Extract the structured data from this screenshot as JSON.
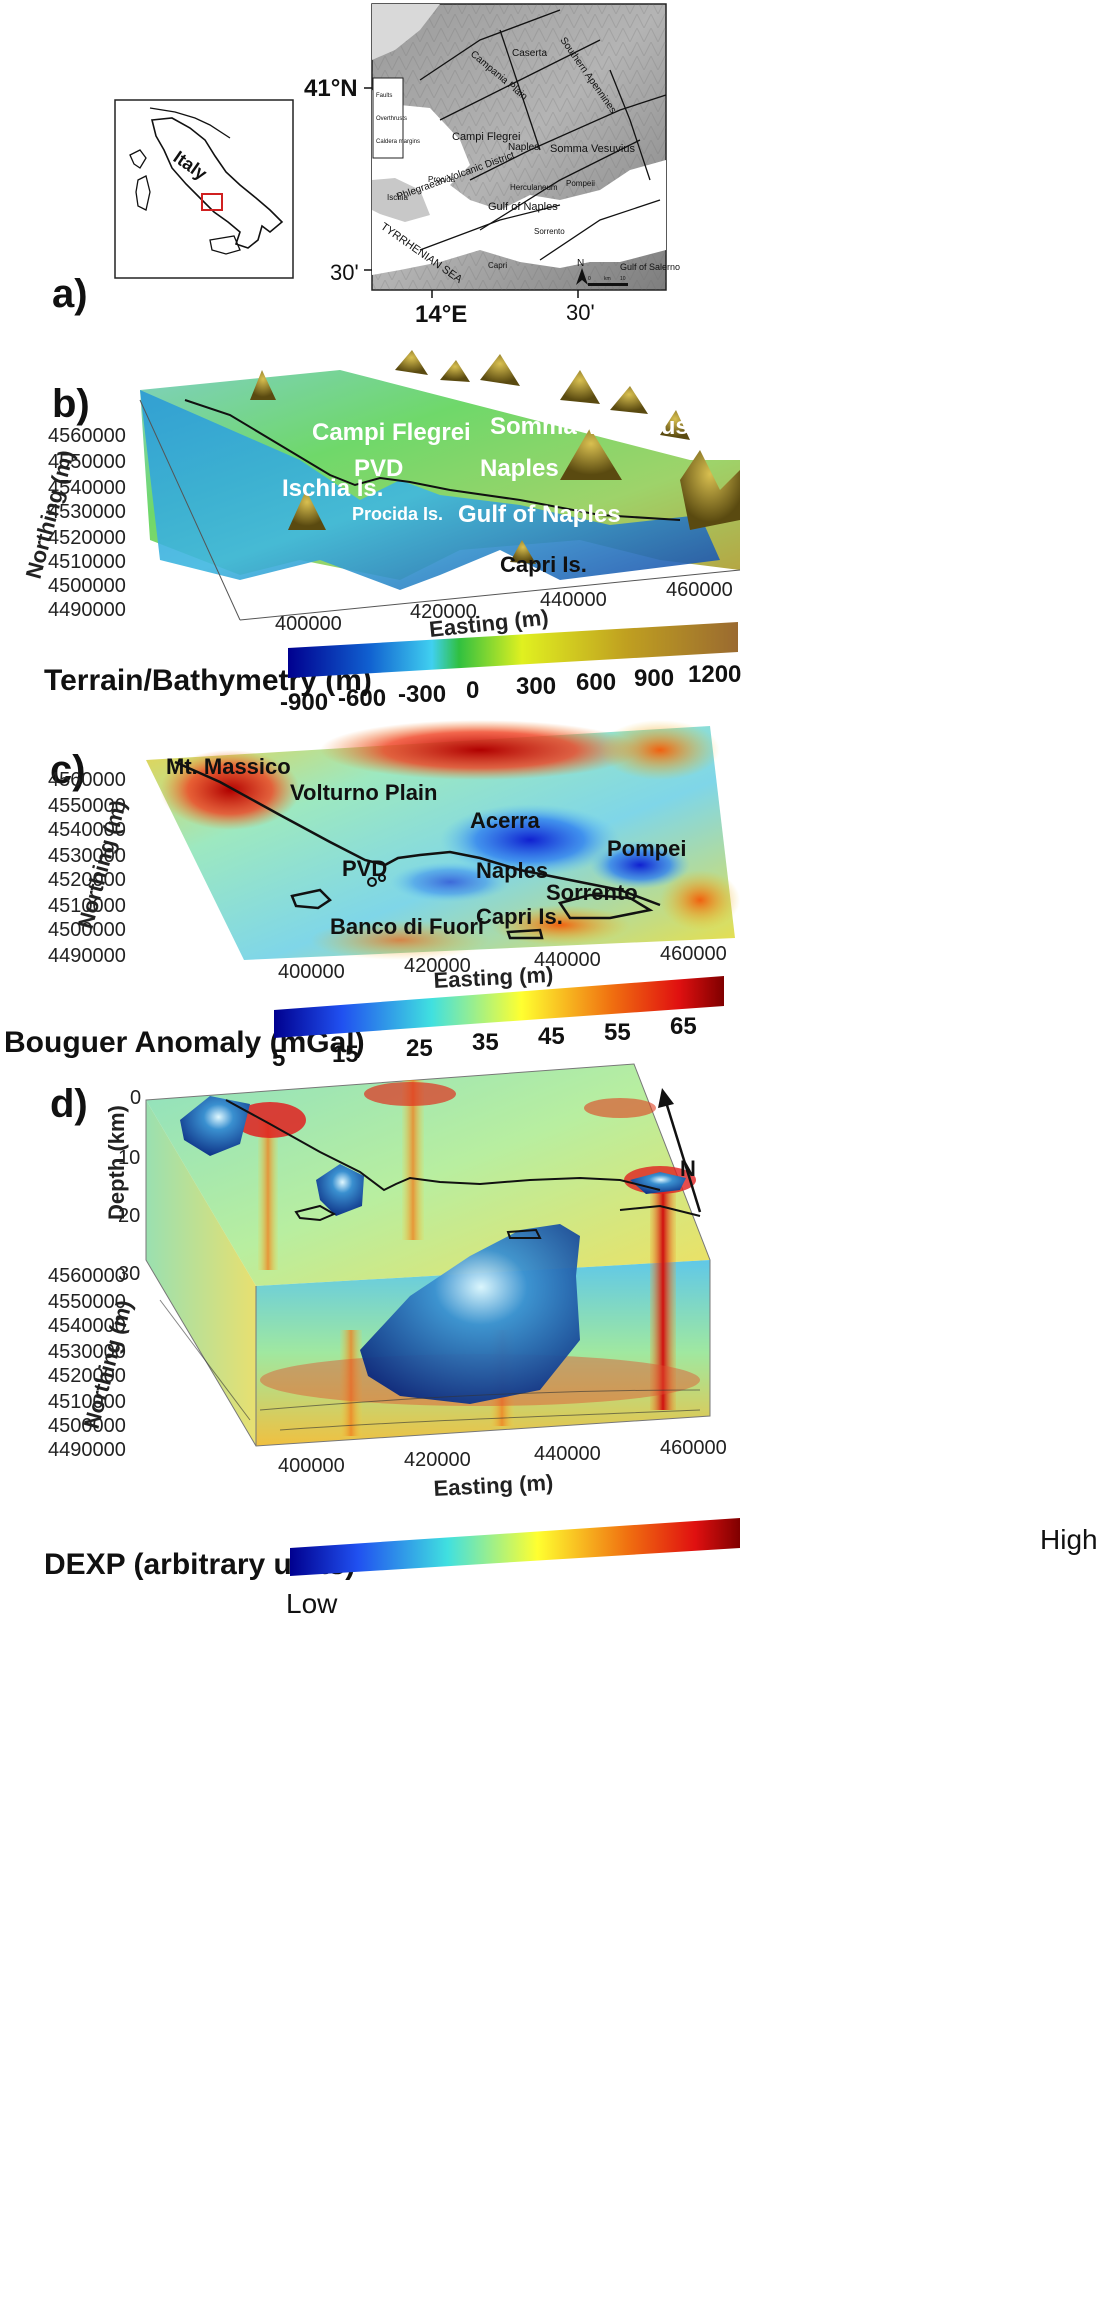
{
  "panels": {
    "a": {
      "label": "a)",
      "inset_label": "Italy",
      "lat_labels": [
        "41°N",
        "30'"
      ],
      "lon_labels": [
        "14°E",
        "30'"
      ],
      "legend": [
        "Faults",
        "Overthrusts",
        "Caldera margins"
      ],
      "places": [
        "Southern Apennines",
        "Campania Plain",
        "Caserta",
        "Campi Flegrei",
        "Naples",
        "Somma Vesuvius",
        "Herculaneum",
        "Pompeii",
        "Phlegraean Volcanic District",
        "Procida",
        "Ischia",
        "Gulf of Naples",
        "TYRRHENIAN SEA",
        "Sorrento",
        "Capri",
        "Gulf of Salerno"
      ],
      "north": "N",
      "scale": [
        "0",
        "km",
        "10"
      ]
    },
    "b": {
      "label": "b)",
      "places": [
        "Campi Flegrei",
        "Somma-Vesuvius",
        "PVD",
        "Naples",
        "Ischia Is.",
        "Procida Is.",
        "Gulf of Naples",
        "Capri Is."
      ],
      "northing_ticks": [
        "4560000",
        "4550000",
        "4540000",
        "4530000",
        "4520000",
        "4510000",
        "4500000",
        "4490000"
      ],
      "northing_title": "Northing (m)",
      "easting_ticks": [
        "400000",
        "420000",
        "440000",
        "460000"
      ],
      "easting_title": "Easting (m)",
      "colorbar": {
        "title": "Terrain/Bathymetry (m)",
        "ticks": [
          "-900",
          "-600",
          "-300",
          "0",
          "300",
          "600",
          "900",
          "1200"
        ]
      }
    },
    "c": {
      "label": "c)",
      "places": [
        "Mt. Massico",
        "Volturno Plain",
        "Acerra",
        "Pompei",
        "PVD",
        "Naples",
        "Sorrento",
        "Capri Is.",
        "Banco di Fuori"
      ],
      "northing_ticks": [
        "4560000",
        "4550000",
        "4540000",
        "4530000",
        "4520000",
        "4510000",
        "4500000",
        "4490000"
      ],
      "northing_title": "Northing (m)",
      "easting_ticks": [
        "400000",
        "420000",
        "440000",
        "460000"
      ],
      "easting_title": "Easting (m)",
      "colorbar": {
        "title": "Bouguer Anomaly (mGal)",
        "ticks": [
          "5",
          "15",
          "25",
          "35",
          "45",
          "55",
          "65"
        ]
      }
    },
    "d": {
      "label": "d)",
      "depth_ticks": [
        "0",
        "10",
        "20",
        "30"
      ],
      "depth_title": "Depth (km)",
      "north": "N",
      "northing_ticks": [
        "4560000",
        "4550000",
        "4540000",
        "4530000",
        "4520000",
        "4510000",
        "4500000",
        "4490000"
      ],
      "northing_title": "Northing (m)",
      "easting_ticks": [
        "400000",
        "420000",
        "440000",
        "460000"
      ],
      "easting_title": "Easting (m)",
      "colorbar": {
        "title": "DEXP (arbitrary units)",
        "low": "Low",
        "high": "High"
      }
    }
  },
  "colors": {
    "jet_dark_blue": "#00008f",
    "jet_cyan": "#40e0e0",
    "jet_yellow": "#ffff30",
    "jet_red": "#e01010",
    "jet_dark_red": "#7f0000",
    "terrain_green": "#30b040",
    "terrain_brown": "#9a6a30"
  }
}
